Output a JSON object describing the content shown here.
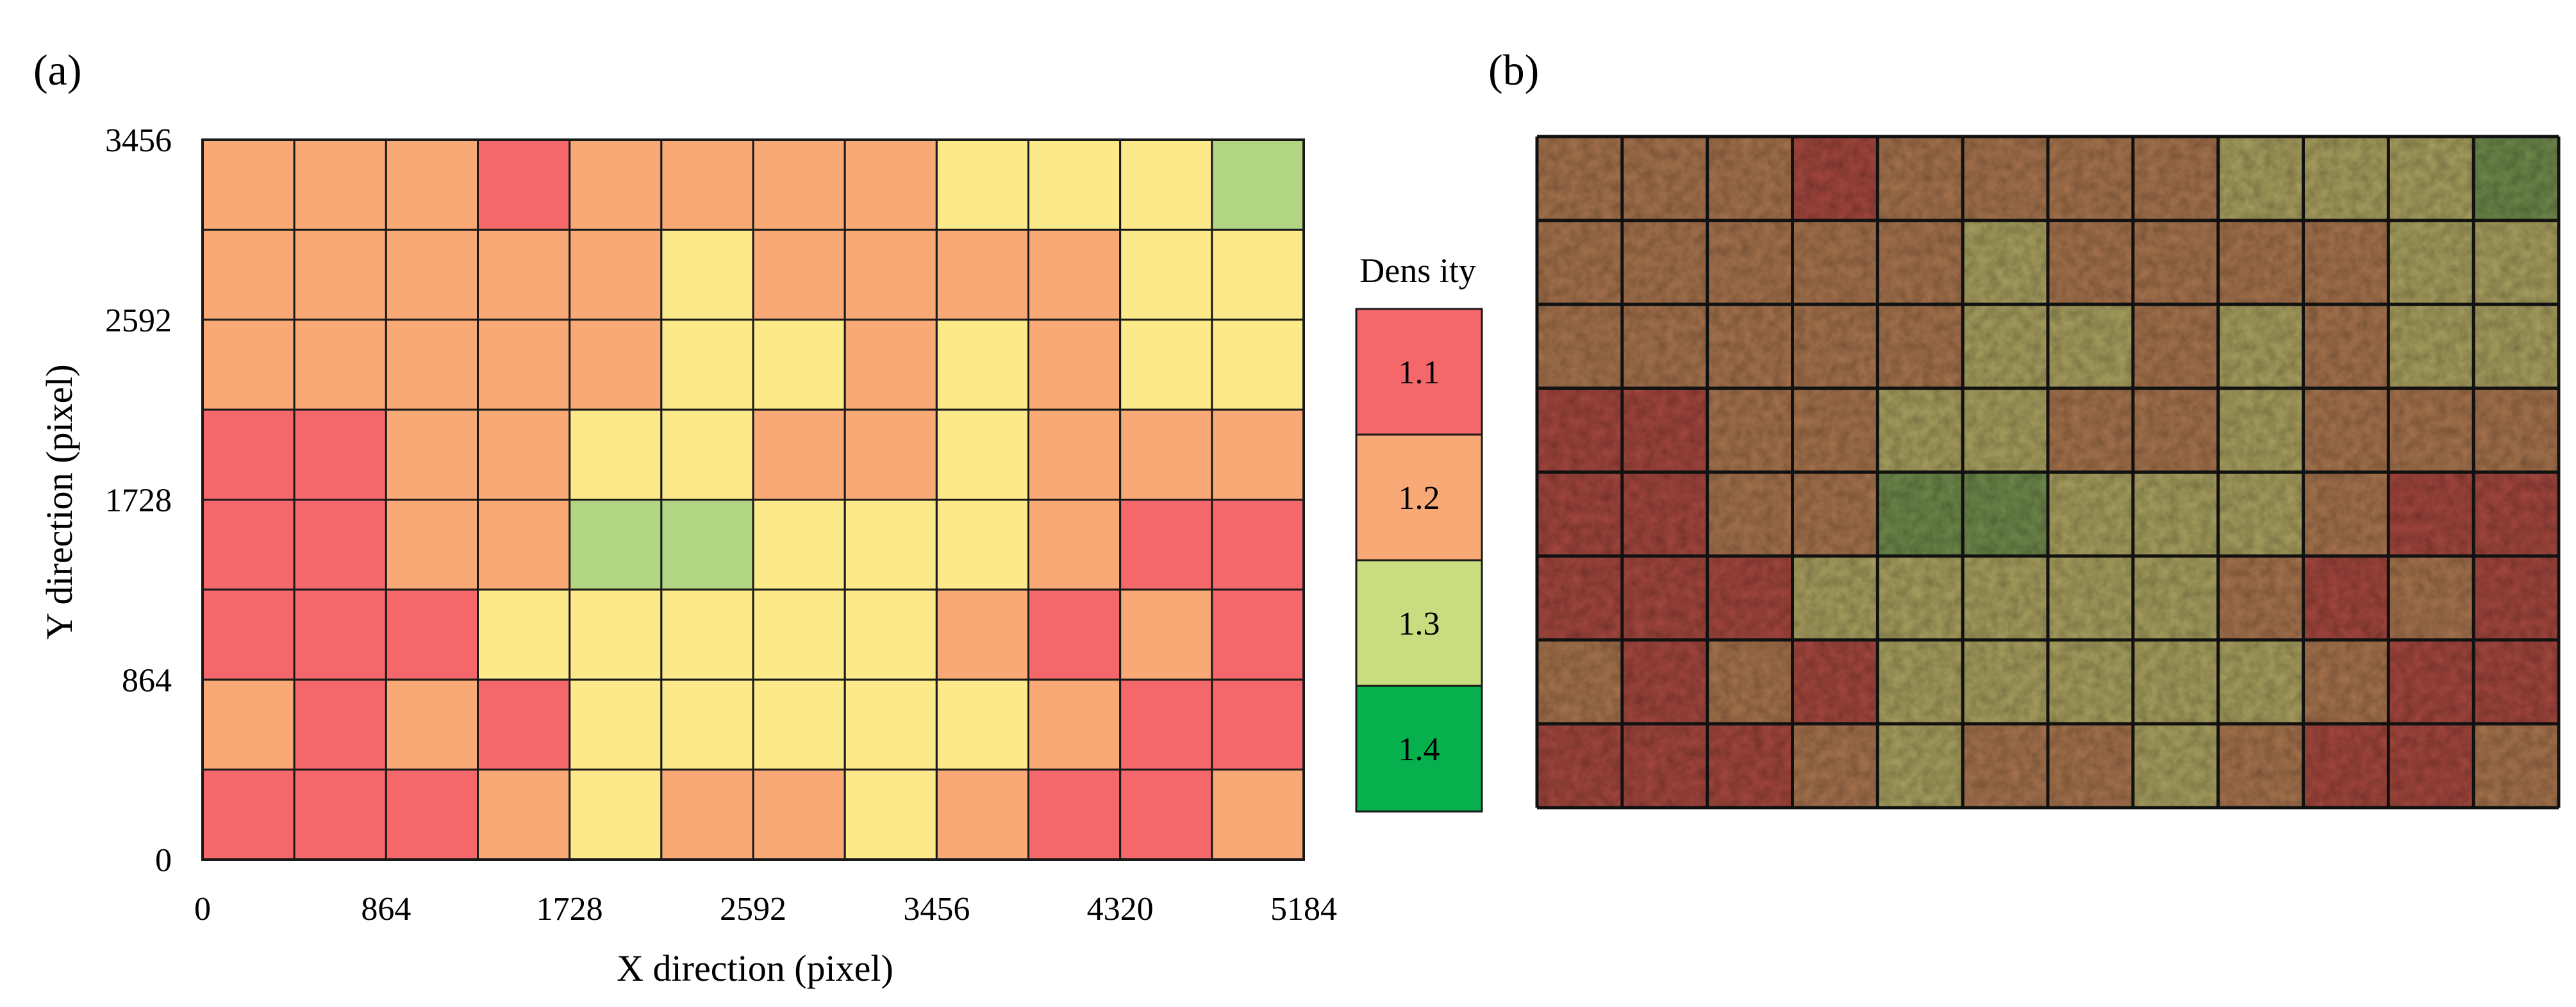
{
  "panels": {
    "a": "(a)",
    "b": "(b)"
  },
  "chart_data": {
    "type": "heatmap",
    "title": "",
    "xlabel": "X direction  (pixel)",
    "ylabel": "Y direction (pixel)",
    "xlim": [
      0,
      5184
    ],
    "ylim": [
      0,
      3456
    ],
    "x_ticks": [
      "0",
      "864",
      "1728",
      "2592",
      "3456",
      "4320",
      "5184"
    ],
    "y_ticks": [
      "0",
      "864",
      "1728",
      "2592",
      "3456"
    ],
    "n_cols": 12,
    "n_rows": 8,
    "cell_size": [
      432,
      432
    ],
    "grid_rows_top_to_bottom": [
      [
        1.2,
        1.2,
        1.2,
        1.1,
        1.2,
        1.2,
        1.2,
        1.2,
        1.3,
        1.3,
        1.3,
        1.4
      ],
      [
        1.2,
        1.2,
        1.2,
        1.2,
        1.2,
        1.3,
        1.2,
        1.2,
        1.2,
        1.2,
        1.3,
        1.3
      ],
      [
        1.2,
        1.2,
        1.2,
        1.2,
        1.2,
        1.3,
        1.3,
        1.2,
        1.3,
        1.2,
        1.3,
        1.3
      ],
      [
        1.1,
        1.1,
        1.2,
        1.2,
        1.3,
        1.3,
        1.2,
        1.2,
        1.3,
        1.2,
        1.2,
        1.2
      ],
      [
        1.1,
        1.1,
        1.2,
        1.2,
        1.4,
        1.4,
        1.3,
        1.3,
        1.3,
        1.2,
        1.1,
        1.1
      ],
      [
        1.1,
        1.1,
        1.1,
        1.3,
        1.3,
        1.3,
        1.3,
        1.3,
        1.2,
        1.1,
        1.2,
        1.1
      ],
      [
        1.2,
        1.1,
        1.2,
        1.1,
        1.3,
        1.3,
        1.3,
        1.3,
        1.3,
        1.2,
        1.1,
        1.1
      ],
      [
        1.1,
        1.1,
        1.1,
        1.2,
        1.3,
        1.2,
        1.2,
        1.3,
        1.2,
        1.1,
        1.1,
        1.2
      ]
    ],
    "legend": {
      "title": "Dens ity",
      "placement": "right",
      "entries": [
        {
          "label": "1.1",
          "color": "#f4686b"
        },
        {
          "label": "1.2",
          "color": "#f8a975"
        },
        {
          "label": "1.3",
          "color": "#c9dc80"
        },
        {
          "label": "1.4",
          "color": "#06b04d"
        }
      ]
    },
    "cell_colors_panel_a": {
      "1.1": "#f4686b",
      "1.2": "#f8a975",
      "1.3": "#fce98a",
      "1.4": "#b2d584"
    },
    "cell_colors_panel_b": {
      "1.1": "#a4493f",
      "1.2": "#a7744f",
      "1.3": "#a9a061",
      "1.4": "#6f8a4e"
    }
  }
}
